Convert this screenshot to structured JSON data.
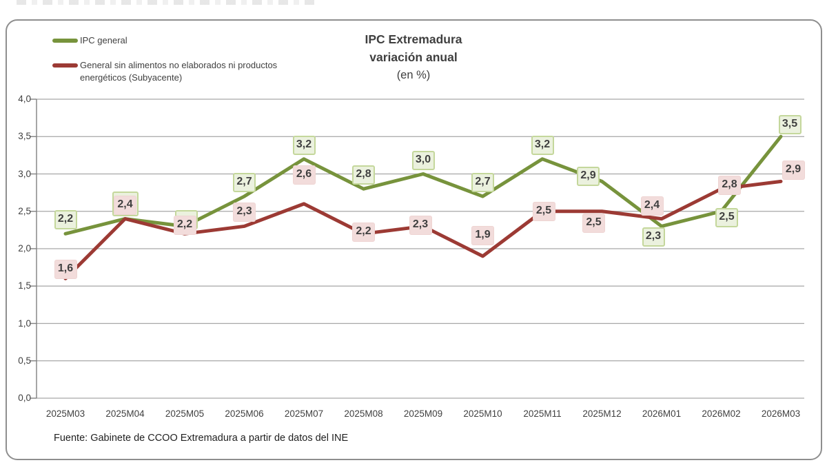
{
  "source": "Fuente: Gabinete de CCOO Extremadura a partir de datos del INE",
  "chart_data": {
    "type": "line",
    "title_lines": [
      "IPC Extremadura",
      "variación anual",
      "(en %)"
    ],
    "categories": [
      "2025M03",
      "2025M04",
      "2025M05",
      "2025M06",
      "2025M07",
      "2025M08",
      "2025M09",
      "2025M10",
      "2025M11",
      "2025M12",
      "2026M01",
      "2026M02",
      "2026M03"
    ],
    "series": [
      {
        "name": "IPC general",
        "color": "#77933C",
        "values": [
          2.2,
          2.4,
          2.3,
          2.7,
          3.2,
          2.8,
          3.0,
          2.7,
          3.2,
          2.9,
          2.3,
          2.5,
          3.5
        ],
        "labels": [
          {
            "t": "2,2",
            "dx": 0,
            "dy": 0
          },
          {
            "t": "",
            "dx": 0,
            "dy": 2,
            "w": 38,
            "h": 36
          },
          {
            "t": "",
            "dx": 2,
            "dy": 11
          },
          {
            "t": "2,7",
            "dx": 0,
            "dy": 0
          },
          {
            "t": "3,2",
            "dx": 0,
            "dy": 0
          },
          {
            "t": "2,8",
            "dx": 0,
            "dy": 0
          },
          {
            "t": "3,0",
            "dx": 0,
            "dy": 0
          },
          {
            "t": "2,7",
            "dx": 0,
            "dy": 0
          },
          {
            "t": "3,2",
            "dx": 0,
            "dy": 0
          },
          {
            "t": "2,9",
            "dx": -20,
            "dy": 13
          },
          {
            "t": "2,3",
            "dx": -12,
            "dy": 36
          },
          {
            "t": "2,5",
            "dx": 8,
            "dy": 29
          },
          {
            "t": "3,5",
            "dx": 13,
            "dy": 3
          }
        ],
        "label_style": {
          "bg": "#EBF1DE",
          "border": "#C4D79B",
          "border_width": 2
        }
      },
      {
        "name": "General sin alimentos no elaborados ni productos energéticos (Subyacente)",
        "color": "#9C3A34",
        "values": [
          1.6,
          2.4,
          2.2,
          2.3,
          2.6,
          2.2,
          2.3,
          1.9,
          2.5,
          2.5,
          2.4,
          2.8,
          2.9
        ],
        "labels": [
          {
            "t": "1,6",
            "dx": 0,
            "dy": 7
          },
          {
            "t": "2,4",
            "dx": 0,
            "dy": 0
          },
          {
            "t": "2,2",
            "dx": 0,
            "dy": 8
          },
          {
            "t": "2,3",
            "dx": 0,
            "dy": 0
          },
          {
            "t": "2,6",
            "dx": 0,
            "dy": -22
          },
          {
            "t": "2,2",
            "dx": 0,
            "dy": 18
          },
          {
            "t": "2,3",
            "dx": -4,
            "dy": 19
          },
          {
            "t": "1,9",
            "dx": 0,
            "dy": -10
          },
          {
            "t": "2,5",
            "dx": 2,
            "dy": 20
          },
          {
            "t": "2,5",
            "dx": -12,
            "dy": 37
          },
          {
            "t": "2,4",
            "dx": -14,
            "dy": 1
          },
          {
            "t": "2,8",
            "dx": 12,
            "dy": 15
          },
          {
            "t": "2,9",
            "dx": 18,
            "dy": 4
          }
        ],
        "label_style": {
          "bg": "#F2DCDB",
          "border": "#EED4D2",
          "border_width": 1
        }
      }
    ],
    "xlabel": "",
    "ylabel": "",
    "ylim": [
      0,
      4
    ],
    "ytick_step": 0.5,
    "yticks": [
      "4,0",
      "3,5",
      "3,0",
      "2,5",
      "2,0",
      "1,5",
      "1,0",
      "0,5",
      "0,0"
    ],
    "grid": true,
    "legend_position": "top-left",
    "colors": {
      "grid": "#A6A6A6",
      "axis": "#808080"
    }
  }
}
